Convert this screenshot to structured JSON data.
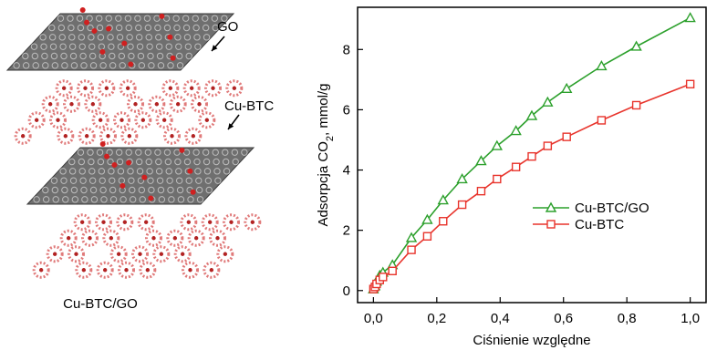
{
  "illustration": {
    "layers": [
      "GO",
      "Cu-BTC",
      "GO",
      "Cu-BTC"
    ],
    "label_go": "GO",
    "label_cubtc": "Cu-BTC",
    "caption": "Cu-BTC/GO",
    "colors": {
      "graphene": "#6f6f6f",
      "graphene_dark": "#3a3a3a",
      "oxygen": "#d02020",
      "mof": "#e07a7a",
      "mof_dark": "#b22222",
      "arrow": "#000000"
    }
  },
  "chart_data": {
    "type": "line",
    "xlabel": "Ciśnienie względne",
    "ylabel_parts": [
      "Adsorpcja CO",
      "2",
      ", mmol/g"
    ],
    "xlim": [
      -0.05,
      1.05
    ],
    "ylim": [
      -0.4,
      9.4
    ],
    "x_ticks": [
      0.0,
      0.2,
      0.4,
      0.6,
      0.8,
      1.0
    ],
    "x_tick_labels": [
      "0,0",
      "0,2",
      "0,4",
      "0,6",
      "0,8",
      "1,0"
    ],
    "y_ticks": [
      0,
      2,
      4,
      6,
      8
    ],
    "y_tick_labels": [
      "0",
      "2",
      "4",
      "6",
      "8"
    ],
    "legend_position": "middle-right",
    "series": [
      {
        "name": "Cu-BTC/GO",
        "color": "#2ca02c",
        "marker": "triangle",
        "x": [
          0.0,
          0.005,
          0.01,
          0.02,
          0.03,
          0.06,
          0.12,
          0.17,
          0.22,
          0.28,
          0.34,
          0.39,
          0.45,
          0.5,
          0.55,
          0.61,
          0.72,
          0.83,
          1.0
        ],
        "y": [
          0.05,
          0.15,
          0.3,
          0.5,
          0.6,
          0.85,
          1.75,
          2.35,
          3.0,
          3.7,
          4.3,
          4.8,
          5.3,
          5.8,
          6.25,
          6.7,
          7.45,
          8.1,
          9.05
        ]
      },
      {
        "name": "Cu-BTC",
        "color": "#e8342c",
        "marker": "square",
        "x": [
          0.0,
          0.005,
          0.01,
          0.02,
          0.03,
          0.06,
          0.12,
          0.17,
          0.22,
          0.28,
          0.34,
          0.39,
          0.45,
          0.5,
          0.55,
          0.61,
          0.72,
          0.83,
          1.0
        ],
        "y": [
          0.05,
          0.12,
          0.22,
          0.35,
          0.45,
          0.65,
          1.35,
          1.8,
          2.3,
          2.85,
          3.3,
          3.7,
          4.1,
          4.45,
          4.8,
          5.1,
          5.65,
          6.15,
          6.85
        ]
      }
    ]
  }
}
